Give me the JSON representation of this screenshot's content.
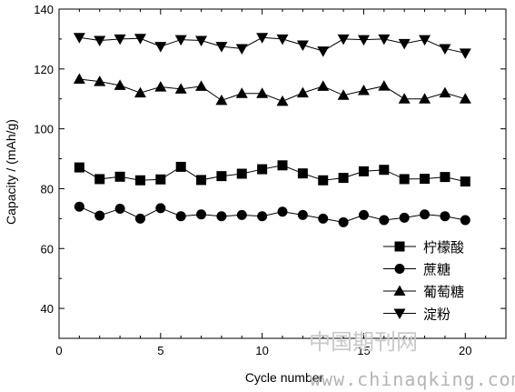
{
  "chart_data": {
    "type": "line",
    "xlabel": "Cycle number",
    "ylabel": "Capacity / (mAh/g)",
    "xlim": [
      0,
      22
    ],
    "ylim": [
      30,
      140
    ],
    "xticks": [
      0,
      5,
      10,
      15,
      20
    ],
    "yticks": [
      40,
      60,
      80,
      100,
      120,
      140
    ],
    "x": [
      1,
      2,
      3,
      4,
      5,
      6,
      7,
      8,
      9,
      10,
      11,
      12,
      13,
      14,
      15,
      16,
      17,
      18,
      19,
      20
    ],
    "legend_position": "bottom-right",
    "grid": false,
    "series": [
      {
        "name": "柠檬酸",
        "marker": "square",
        "values": [
          87.1,
          83.2,
          84.0,
          82.8,
          83.1,
          87.3,
          82.9,
          84.2,
          85.0,
          86.5,
          87.8,
          85.1,
          82.8,
          83.6,
          85.8,
          86.3,
          83.2,
          83.3,
          83.9,
          82.4
        ]
      },
      {
        "name": "蔗糖",
        "marker": "circle",
        "values": [
          74.0,
          71.0,
          73.3,
          70.0,
          73.5,
          70.8,
          71.4,
          70.8,
          71.2,
          70.8,
          72.3,
          71.2,
          70.0,
          68.8,
          71.2,
          69.5,
          70.3,
          71.4,
          70.8,
          69.5
        ]
      },
      {
        "name": "葡萄糖",
        "marker": "triangle-up",
        "values": [
          116.6,
          115.8,
          114.5,
          112.0,
          114.0,
          113.3,
          114.2,
          109.5,
          111.8,
          111.8,
          109.2,
          112.0,
          114.2,
          111.2,
          112.8,
          114.3,
          110.0,
          110.0,
          112.0,
          110.0
        ]
      },
      {
        "name": "淀粉",
        "marker": "triangle-down",
        "values": [
          130.5,
          129.5,
          130.0,
          130.2,
          127.5,
          129.8,
          129.5,
          127.5,
          126.8,
          130.5,
          130.0,
          128.0,
          126.0,
          130.0,
          129.8,
          130.0,
          128.5,
          129.8,
          126.8,
          125.3
        ]
      }
    ]
  },
  "watermark": {
    "cn_text": "中国期刊网",
    "url_text": "www.chinaqking.com"
  }
}
